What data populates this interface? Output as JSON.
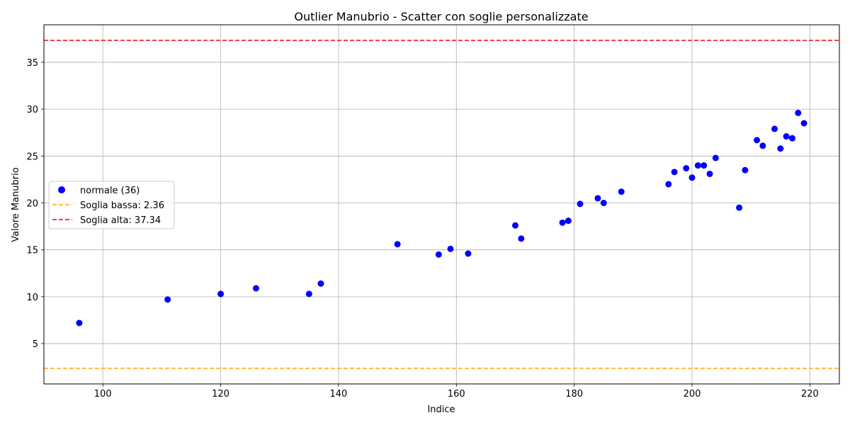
{
  "chart_data": {
    "type": "scatter",
    "title": "Outlier Manubrio - Scatter con soglie personalizzate",
    "xlabel": "Indice",
    "ylabel": "Valore Manubrio",
    "xlim": [
      90,
      225
    ],
    "ylim": [
      0.7,
      39
    ],
    "x_ticks": [
      100,
      120,
      140,
      160,
      180,
      200,
      220
    ],
    "y_ticks": [
      5,
      10,
      15,
      20,
      25,
      30,
      35
    ],
    "grid": true,
    "legend_position": "center-left",
    "series": [
      {
        "name": "normale (36)",
        "color": "#0000ff",
        "points": [
          [
            96,
            7.2
          ],
          [
            111,
            9.7
          ],
          [
            120,
            10.3
          ],
          [
            126,
            10.9
          ],
          [
            135,
            10.3
          ],
          [
            137,
            11.4
          ],
          [
            150,
            15.6
          ],
          [
            157,
            14.5
          ],
          [
            159,
            15.1
          ],
          [
            162,
            14.6
          ],
          [
            170,
            17.6
          ],
          [
            171,
            16.2
          ],
          [
            178,
            17.9
          ],
          [
            179,
            18.1
          ],
          [
            181,
            19.9
          ],
          [
            184,
            20.5
          ],
          [
            185,
            20.0
          ],
          [
            188,
            21.2
          ],
          [
            196,
            22.0
          ],
          [
            197,
            23.3
          ],
          [
            199,
            23.7
          ],
          [
            200,
            22.7
          ],
          [
            201,
            24.0
          ],
          [
            202,
            24.0
          ],
          [
            203,
            23.1
          ],
          [
            204,
            24.8
          ],
          [
            208,
            19.5
          ],
          [
            209,
            23.5
          ],
          [
            211,
            26.7
          ],
          [
            212,
            26.1
          ],
          [
            214,
            27.9
          ],
          [
            215,
            25.8
          ],
          [
            216,
            27.1
          ],
          [
            217,
            26.9
          ],
          [
            218,
            29.6
          ],
          [
            219,
            28.5
          ]
        ]
      }
    ],
    "thresholds": [
      {
        "name": "Soglia bassa: 2.36",
        "value": 2.36,
        "color": "#ffa500",
        "style": "dashed"
      },
      {
        "name": "Soglia alta: 37.34",
        "value": 37.34,
        "color": "#ff0000",
        "style": "dashed"
      }
    ]
  }
}
